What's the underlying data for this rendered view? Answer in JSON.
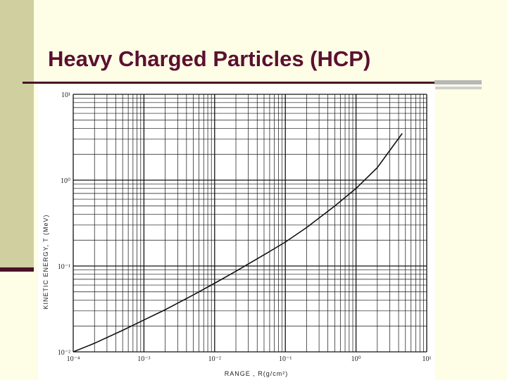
{
  "slide": {
    "title": "Heavy Charged Particles (HCP)"
  },
  "colors": {
    "background": "#fefee6",
    "left_bar": "#d0cfa0",
    "accent": "#4a1228",
    "title": "#5b1030"
  },
  "chart_data": {
    "type": "line",
    "title": "",
    "xlabel": "RANGE , R(g/cm²)",
    "ylabel": "KINETIC ENERGY, T (MeV)",
    "xscale": "log",
    "yscale": "log",
    "xlim": [
      0.0001,
      10
    ],
    "ylim": [
      0.01,
      10
    ],
    "grid": true,
    "x_tick_labels": [
      "10⁻⁴",
      "10⁻³",
      "10⁻²",
      "10⁻¹",
      "10⁰",
      "10¹"
    ],
    "y_tick_labels": [
      "10⁻²",
      "10⁻¹",
      "10⁰",
      "10¹"
    ],
    "x_tick_values": [
      0.0001,
      0.001,
      0.01,
      0.1,
      1,
      10
    ],
    "y_tick_values": [
      0.01,
      0.1,
      1,
      10
    ],
    "series": [
      {
        "x": [
          0.0001,
          0.0002,
          0.0005,
          0.001,
          0.002,
          0.005,
          0.01,
          0.02,
          0.05,
          0.1,
          0.2,
          0.5,
          1,
          2,
          4.5
        ],
        "y": [
          0.01,
          0.0126,
          0.0178,
          0.0235,
          0.031,
          0.046,
          0.063,
          0.087,
          0.135,
          0.19,
          0.28,
          0.5,
          0.8,
          1.4,
          3.5
        ]
      }
    ]
  }
}
